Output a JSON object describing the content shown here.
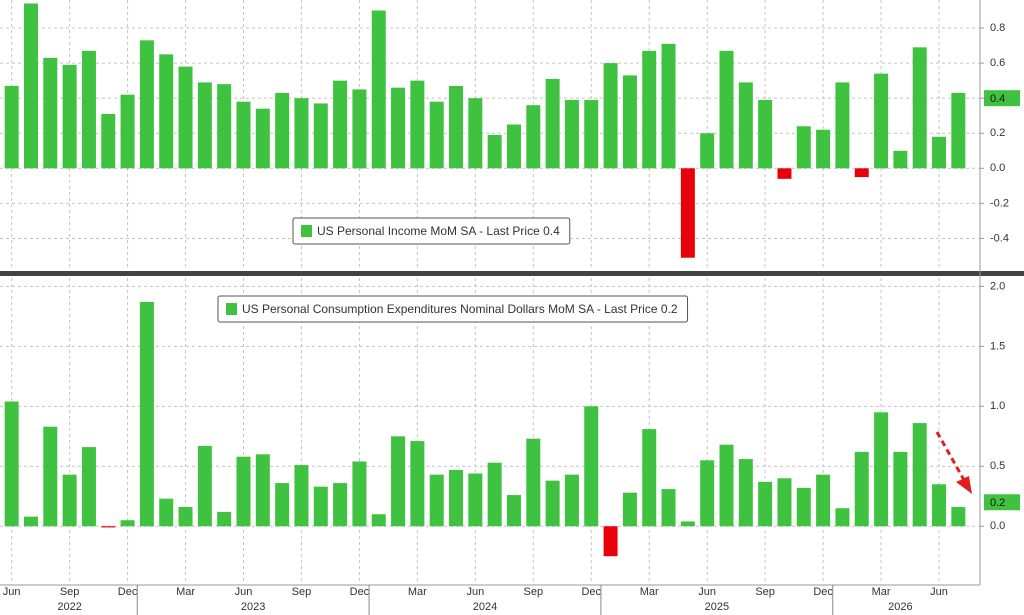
{
  "chart_data": [
    {
      "type": "bar",
      "series": [
        {
          "name": "US Personal Income MoM SA - Last Price 0.4",
          "color": "#3fc23f",
          "negative_color": "#e8000b",
          "values": [
            0.47,
            0.94,
            0.63,
            0.59,
            0.67,
            0.31,
            0.42,
            0.73,
            0.65,
            0.58,
            0.49,
            0.48,
            0.38,
            0.34,
            0.43,
            0.4,
            0.37,
            0.5,
            0.45,
            0.9,
            0.46,
            0.5,
            0.38,
            0.47,
            0.4,
            0.19,
            0.25,
            0.36,
            0.51,
            0.39,
            0.39,
            0.6,
            0.53,
            0.67,
            0.71,
            -0.51,
            0.2,
            0.67,
            0.49,
            0.39,
            -0.06,
            0.24,
            0.22,
            0.49,
            -0.05,
            0.54,
            0.1,
            0.69,
            0.18,
            0.43
          ]
        }
      ],
      "last_price": 0.4,
      "ylim": [
        -0.58,
        0.96
      ],
      "yticks": [
        -0.4,
        -0.2,
        {
          "value": 0,
          "label": "0.0"
        },
        0.2,
        0.4,
        0.6,
        0.8
      ],
      "grid": true
    },
    {
      "type": "bar",
      "series": [
        {
          "name": "US Personal Consumption Expenditures Nominal Dollars MoM SA - Last Price 0.2",
          "color": "#3fc23f",
          "negative_color": "#e8000b",
          "values": [
            1.04,
            0.08,
            0.83,
            0.43,
            0.66,
            -0.01,
            0.05,
            1.87,
            0.23,
            0.16,
            0.67,
            0.12,
            0.58,
            0.6,
            0.36,
            0.51,
            0.33,
            0.36,
            0.54,
            0.1,
            0.75,
            0.71,
            0.43,
            0.47,
            0.44,
            0.53,
            0.26,
            0.73,
            0.38,
            0.43,
            1.0,
            -0.25,
            0.28,
            0.81,
            0.31,
            0.04,
            0.55,
            0.68,
            0.56,
            0.37,
            0.4,
            0.32,
            0.43,
            0.15,
            0.62,
            0.95,
            0.62,
            0.86,
            0.35,
            0.16
          ]
        }
      ],
      "categories": [
        "Jun",
        null,
        null,
        "Sep",
        null,
        null,
        "Dec",
        null,
        null,
        "Mar",
        null,
        null,
        "Jun",
        null,
        null,
        "Sep",
        null,
        null,
        "Dec",
        null,
        null,
        "Mar",
        null,
        null,
        "Jun",
        null,
        null,
        "Sep",
        null,
        null,
        "Dec",
        null,
        null,
        "Mar",
        null,
        null,
        "Jun",
        null,
        null,
        "Sep",
        null,
        null,
        "Dec",
        null,
        null,
        "Mar",
        null,
        null,
        "Jun",
        null
      ],
      "years": [
        "2022",
        "2023",
        "2024",
        "2025",
        "2026"
      ],
      "last_price": 0.2,
      "ylim": [
        -0.49,
        2.07
      ],
      "yticks": [
        {
          "value": 0,
          "label": "0.0"
        },
        0.5,
        {
          "value": 1,
          "label": "1.0"
        },
        1.5,
        {
          "value": 2,
          "label": "2.0"
        }
      ],
      "grid": true
    }
  ]
}
